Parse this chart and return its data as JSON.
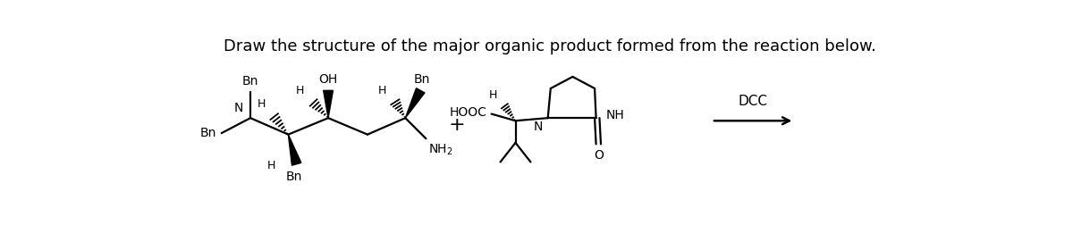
{
  "title": "Draw the structure of the major organic product formed from the reaction below.",
  "title_fontsize": 13,
  "bg_color": "#ffffff",
  "text_color": "#000000",
  "lw": 1.6,
  "fig_w": 12.0,
  "fig_h": 2.8,
  "xlim": [
    0,
    12
  ],
  "ylim": [
    0,
    2.8
  ]
}
